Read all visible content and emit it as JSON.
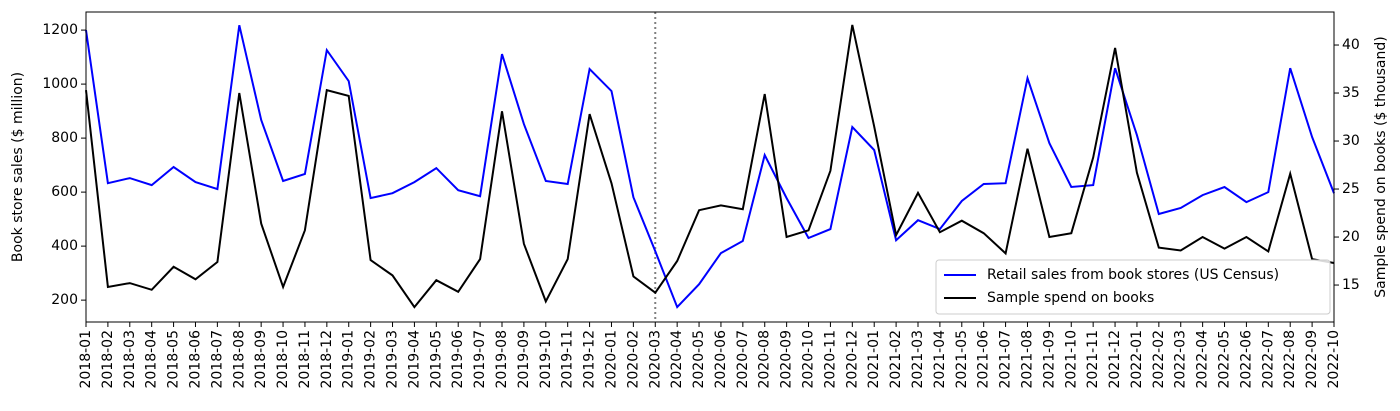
{
  "chart_data": {
    "type": "line",
    "y_label": "Book store sales ($ million)",
    "y2_label": "Sample spend on books ($ thousand)",
    "categories": [
      "2018-01",
      "2018-02",
      "2018-03",
      "2018-04",
      "2018-05",
      "2018-06",
      "2018-07",
      "2018-08",
      "2018-09",
      "2018-10",
      "2018-11",
      "2018-12",
      "2019-01",
      "2019-02",
      "2019-03",
      "2019-04",
      "2019-05",
      "2019-06",
      "2019-07",
      "2019-08",
      "2019-09",
      "2019-10",
      "2019-11",
      "2019-12",
      "2020-01",
      "2020-02",
      "2020-03",
      "2020-04",
      "2020-05",
      "2020-06",
      "2020-07",
      "2020-08",
      "2020-09",
      "2020-10",
      "2020-11",
      "2020-12",
      "2021-01",
      "2021-02",
      "2021-03",
      "2021-04",
      "2021-05",
      "2021-06",
      "2021-07",
      "2021-08",
      "2021-09",
      "2021-10",
      "2021-11",
      "2021-12",
      "2022-01",
      "2022-02",
      "2022-03",
      "2022-04",
      "2022-05",
      "2022-06",
      "2022-07",
      "2022-08",
      "2022-09",
      "2022-10"
    ],
    "series": [
      {
        "name": "Retail sales from book stores (US Census)",
        "color": "#0000ff",
        "axis": "y",
        "values": [
          1200,
          633,
          652,
          626,
          693,
          637,
          611,
          1218,
          867,
          641,
          667,
          1126,
          1011,
          578,
          596,
          637,
          689,
          607,
          585,
          1111,
          852,
          641,
          630,
          1056,
          974,
          581,
          381,
          174,
          259,
          374,
          419,
          737,
          578,
          430,
          463,
          841,
          756,
          422,
          496,
          463,
          567,
          630,
          633,
          1022,
          781,
          619,
          626,
          1059,
          811,
          519,
          541,
          589,
          619,
          563,
          600,
          1059,
          804,
          596
        ]
      },
      {
        "name": "Sample spend on books",
        "color": "#000000",
        "axis": "y2",
        "values": [
          35.3,
          14.8,
          15.2,
          14.5,
          16.9,
          15.6,
          17.4,
          35.0,
          21.4,
          14.8,
          20.7,
          35.3,
          34.7,
          17.6,
          16.0,
          12.7,
          15.5,
          14.3,
          17.7,
          33.1,
          19.3,
          13.3,
          17.7,
          32.8,
          25.6,
          15.9,
          14.2,
          17.5,
          22.8,
          23.3,
          22.9,
          34.9,
          20.0,
          20.7,
          26.9,
          42.1,
          31.5,
          20.2,
          24.6,
          20.5,
          21.7,
          20.4,
          18.3,
          29.2,
          20.0,
          20.4,
          28.3,
          39.7,
          26.7,
          18.9,
          18.6,
          20.0,
          18.8,
          20.0,
          18.5,
          26.6,
          17.7,
          17.3
        ]
      }
    ],
    "ylim": [
      119,
      1267
    ],
    "yticks": [
      200,
      400,
      600,
      800,
      1000,
      1200
    ],
    "y2lim": [
      11.15,
      43.44
    ],
    "y2ticks": [
      15,
      20,
      25,
      30,
      35,
      40
    ],
    "vline": "2020-03",
    "legend": "lower right",
    "grid": false
  }
}
